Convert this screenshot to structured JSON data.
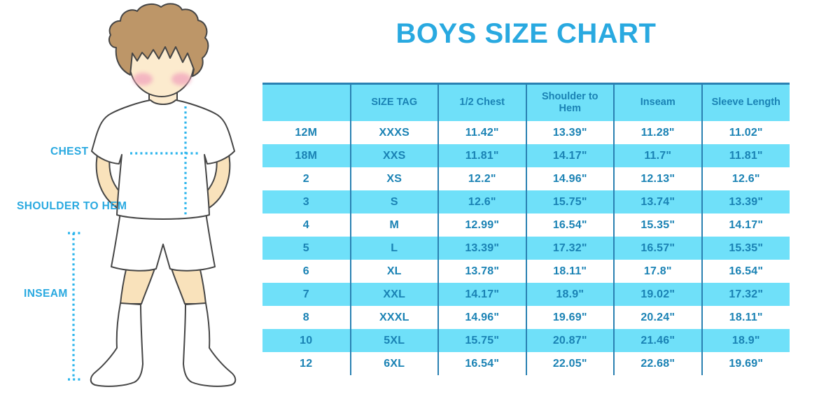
{
  "title": "BOYS SIZE CHART",
  "measurement_labels": {
    "chest": "CHEST",
    "shoulder_to_hem": "SHOULDER TO HEM",
    "inseam": "INSEAM"
  },
  "colors": {
    "accent_blue": "#29A9E0",
    "table_fill_cyan": "#6FE0F9",
    "table_line_blue": "#2A81B2",
    "table_text_blue": "#1A82B4",
    "dotted_cyan": "#2BB5EC",
    "skin_face": "#FCEBCE",
    "skin_limbs": "#F9E2BB",
    "hair_brown": "#BD9668",
    "blush_pink": "#F2A9BE",
    "outline_dark": "#454545"
  },
  "chart_data": {
    "type": "table",
    "title": "BOYS SIZE CHART",
    "columns": [
      "",
      "SIZE TAG",
      "1/2 Chest",
      "Shoulder to Hem",
      "Inseam",
      "Sleeve Length"
    ],
    "rows": [
      [
        "12M",
        "XXXS",
        "11.42\"",
        "13.39\"",
        "11.28\"",
        "11.02\""
      ],
      [
        "18M",
        "XXS",
        "11.81\"",
        "14.17\"",
        "11.7\"",
        "11.81\""
      ],
      [
        "2",
        "XS",
        "12.2\"",
        "14.96\"",
        "12.13\"",
        "12.6\""
      ],
      [
        "3",
        "S",
        "12.6\"",
        "15.75\"",
        "13.74\"",
        "13.39\""
      ],
      [
        "4",
        "M",
        "12.99\"",
        "16.54\"",
        "15.35\"",
        "14.17\""
      ],
      [
        "5",
        "L",
        "13.39\"",
        "17.32\"",
        "16.57\"",
        "15.35\""
      ],
      [
        "6",
        "XL",
        "13.78\"",
        "18.11\"",
        "17.8\"",
        "16.54\""
      ],
      [
        "7",
        "XXL",
        "14.17\"",
        "18.9\"",
        "19.02\"",
        "17.32\""
      ],
      [
        "8",
        "XXXL",
        "14.96\"",
        "19.69\"",
        "20.24\"",
        "18.11\""
      ],
      [
        "10",
        "5XL",
        "15.75\"",
        "20.87\"",
        "21.46\"",
        "18.9\""
      ],
      [
        "12",
        "6XL",
        "16.54\"",
        "22.05\"",
        "22.68\"",
        "19.69\""
      ]
    ]
  }
}
